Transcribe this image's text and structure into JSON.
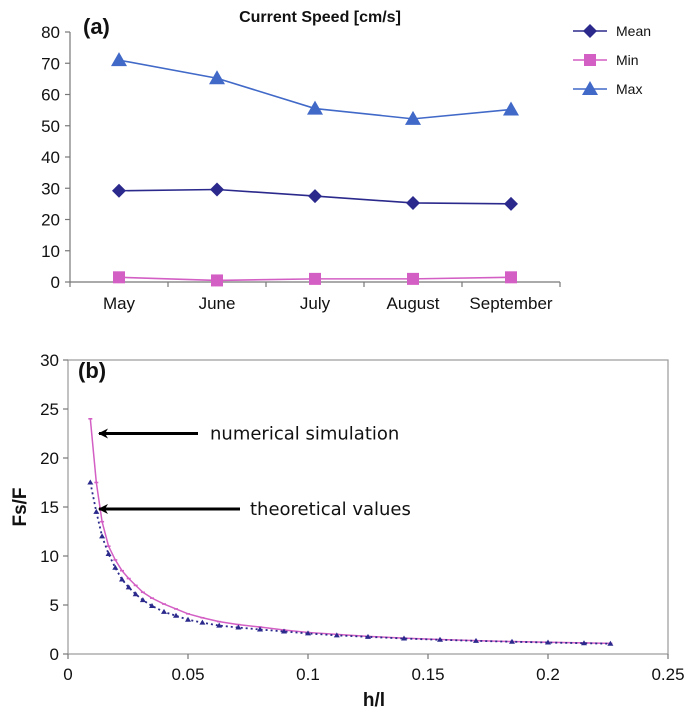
{
  "chart_data": [
    {
      "panel": "(a)",
      "type": "line",
      "title": "Current Speed [cm/s]",
      "categories": [
        "May",
        "June",
        "July",
        "August",
        "September"
      ],
      "ylim": [
        0,
        80
      ],
      "yticks": [
        0,
        10,
        20,
        30,
        40,
        50,
        60,
        70,
        80
      ],
      "legend_placement": "top-right",
      "grid": false,
      "series": [
        {
          "name": "Mean",
          "values": [
            29.2,
            29.6,
            27.5,
            25.3,
            25.0
          ],
          "color": "#2b2a8c",
          "marker": "diamond"
        },
        {
          "name": "Min",
          "values": [
            1.5,
            0.5,
            1.0,
            1.0,
            1.5
          ],
          "color": "#d35fc4",
          "marker": "square"
        },
        {
          "name": "Max",
          "values": [
            71.0,
            65.2,
            55.5,
            52.2,
            55.2
          ],
          "color": "#4169c8",
          "marker": "triangle"
        }
      ]
    },
    {
      "panel": "(b)",
      "type": "line",
      "xlabel": "h/l",
      "ylabel": "Fs/F",
      "xlim": [
        0,
        0.25
      ],
      "ylim": [
        0,
        30
      ],
      "xticks": [
        "0",
        "0.05",
        "0.1",
        "0.15",
        "0.2",
        "0.25"
      ],
      "yticks": [
        0,
        5,
        10,
        15,
        20,
        25,
        30
      ],
      "grid": false,
      "annotations": [
        {
          "text": "numerical simulation",
          "x": 0.01,
          "y": 22.5
        },
        {
          "text": "theoretical values",
          "x": 0.01,
          "y": 14.8
        }
      ],
      "series": [
        {
          "role": "numerical simulation",
          "color": "#d35fc4",
          "style": "solid",
          "x": [
            0.0093,
            0.0118,
            0.0142,
            0.0169,
            0.0197,
            0.0225,
            0.0253,
            0.0282,
            0.0312,
            0.035,
            0.04,
            0.045,
            0.05,
            0.056,
            0.063,
            0.071,
            0.08,
            0.09,
            0.1,
            0.112,
            0.125,
            0.14,
            0.155,
            0.17,
            0.185,
            0.2,
            0.215,
            0.226
          ],
          "y": [
            24.0,
            17.5,
            13.5,
            11.0,
            9.6,
            8.5,
            7.7,
            7.0,
            6.3,
            5.7,
            5.1,
            4.6,
            4.1,
            3.7,
            3.3,
            3.0,
            2.75,
            2.45,
            2.2,
            2.0,
            1.8,
            1.62,
            1.48,
            1.36,
            1.27,
            1.2,
            1.13,
            1.08
          ]
        },
        {
          "role": "theoretical values",
          "color": "#2b2a8c",
          "style": "dotted",
          "x": [
            0.0093,
            0.0118,
            0.0142,
            0.0169,
            0.0197,
            0.0225,
            0.0253,
            0.0282,
            0.0312,
            0.035,
            0.04,
            0.045,
            0.05,
            0.056,
            0.063,
            0.071,
            0.08,
            0.09,
            0.1,
            0.112,
            0.125,
            0.14,
            0.155,
            0.17,
            0.185,
            0.2,
            0.215,
            0.226
          ],
          "y": [
            17.5,
            14.5,
            12.0,
            10.2,
            8.8,
            7.6,
            6.8,
            6.1,
            5.5,
            4.9,
            4.3,
            3.9,
            3.5,
            3.2,
            2.9,
            2.7,
            2.5,
            2.3,
            2.1,
            1.9,
            1.75,
            1.58,
            1.45,
            1.34,
            1.25,
            1.17,
            1.1,
            1.05
          ]
        }
      ]
    }
  ]
}
